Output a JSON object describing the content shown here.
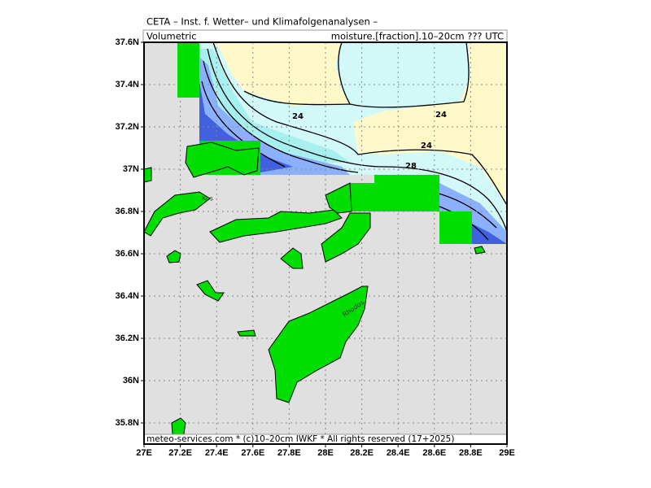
{
  "header": {
    "title": "CETA – Inst. f. Wetter– und Klimafolgenanalysen –",
    "left": "Volumetric",
    "right": "moisture.[fraction].10–20cm ??? UTC"
  },
  "map": {
    "lonlim": [
      27,
      29
    ],
    "latlim": [
      35.7,
      37.6
    ],
    "lonticks": [
      {
        "value": 27,
        "label": "27E"
      },
      {
        "value": 27.2,
        "label": "27.2E"
      },
      {
        "value": 27.4,
        "label": "27.4E"
      },
      {
        "value": 27.6,
        "label": "27.6E"
      },
      {
        "value": 27.8,
        "label": "27.8E"
      },
      {
        "value": 28,
        "label": "28E"
      },
      {
        "value": 28.2,
        "label": "28.2E"
      },
      {
        "value": 28.4,
        "label": "28.4E"
      },
      {
        "value": 28.6,
        "label": "28.6E"
      },
      {
        "value": 28.8,
        "label": "28.8E"
      },
      {
        "value": 29,
        "label": "29E"
      }
    ],
    "latticks": [
      {
        "value": 35.8,
        "label": "35.8N"
      },
      {
        "value": 36,
        "label": "36N"
      },
      {
        "value": 36.2,
        "label": "36.2N"
      },
      {
        "value": 36.4,
        "label": "36.4N"
      },
      {
        "value": 36.6,
        "label": "36.6N"
      },
      {
        "value": 36.8,
        "label": "36.8N"
      },
      {
        "value": 37,
        "label": "37N"
      },
      {
        "value": 37.2,
        "label": "37.2N"
      },
      {
        "value": 37.4,
        "label": "37.4N"
      },
      {
        "value": 37.6,
        "label": "37.6N"
      }
    ],
    "grid": true,
    "contour_labels": [
      "24",
      "24",
      "24",
      "28"
    ],
    "places": [
      "Kos",
      "Rhodos"
    ]
  },
  "footer": "meteo-services.com * (c)10–20cm IWKF * All rights reserved (17+2025)"
}
